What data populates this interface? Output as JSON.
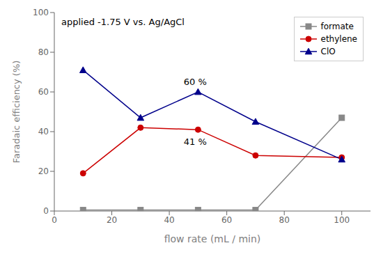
{
  "chart_data": {
    "type": "line",
    "title": "applied -1.75 V vs. Ag/AgCl",
    "x_label": "flow rate (mL / min)",
    "y_label": "Faradaic efficiency (%)",
    "xlim": [
      0,
      110
    ],
    "ylim": [
      0,
      100
    ],
    "xticks": [
      0,
      20,
      40,
      60,
      80,
      100
    ],
    "yticks": [
      0,
      20,
      40,
      60,
      80,
      100
    ],
    "x": [
      10,
      30,
      50,
      70,
      100
    ],
    "series": [
      {
        "name": "formate",
        "color": "#888888",
        "marker": "square",
        "values": [
          0.5,
          0.5,
          0.5,
          0.5,
          47
        ]
      },
      {
        "name": "ethylene",
        "color": "#cc0000",
        "marker": "circle",
        "values": [
          19,
          42,
          41,
          28,
          27
        ]
      },
      {
        "name": "ClO",
        "color": "#00008B",
        "marker": "triangle",
        "values": [
          71,
          47,
          60,
          45,
          26
        ]
      }
    ],
    "annotations": [
      {
        "text": "60 %",
        "x": 49,
        "y": 65
      },
      {
        "text": "41 %",
        "x": 49,
        "y": 35
      }
    ],
    "legend": "upper right",
    "grid": false
  }
}
